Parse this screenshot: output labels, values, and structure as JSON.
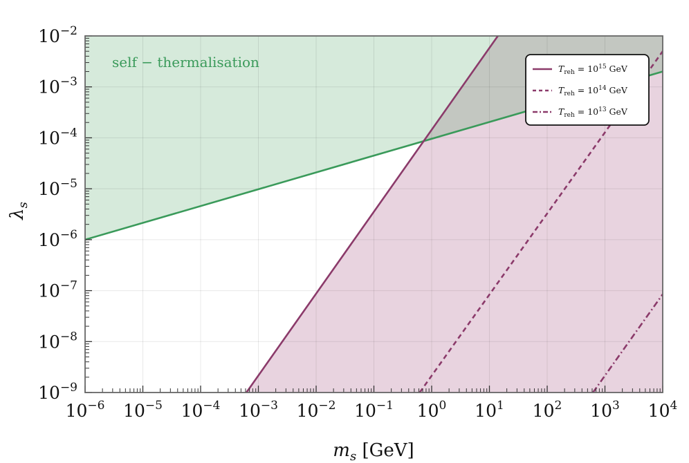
{
  "chart_data": {
    "type": "line",
    "title": "",
    "xlabel": {
      "symbol": "m",
      "subscript": "s",
      "unit": "[GeV]"
    },
    "ylabel": {
      "symbol": "λ",
      "subscript": "s"
    },
    "xscale": "log",
    "yscale": "log",
    "xlim": [
      1e-06,
      10000.0
    ],
    "ylim": [
      1e-09,
      0.01
    ],
    "x_ticks": [
      {
        "base": "10",
        "exp": "−6"
      },
      {
        "base": "10",
        "exp": "−5"
      },
      {
        "base": "10",
        "exp": "−4"
      },
      {
        "base": "10",
        "exp": "−3"
      },
      {
        "base": "10",
        "exp": "−2"
      },
      {
        "base": "10",
        "exp": "−1"
      },
      {
        "base": "10",
        "exp": "0"
      },
      {
        "base": "10",
        "exp": "1"
      },
      {
        "base": "10",
        "exp": "2"
      },
      {
        "base": "10",
        "exp": "3"
      },
      {
        "base": "10",
        "exp": "4"
      }
    ],
    "y_ticks": [
      {
        "base": "10",
        "exp": "−9"
      },
      {
        "base": "10",
        "exp": "−8"
      },
      {
        "base": "10",
        "exp": "−7"
      },
      {
        "base": "10",
        "exp": "−6"
      },
      {
        "base": "10",
        "exp": "−5"
      },
      {
        "base": "10",
        "exp": "−4"
      },
      {
        "base": "10",
        "exp": "−3"
      },
      {
        "base": "10",
        "exp": "−2"
      }
    ],
    "grid": true,
    "legend_position": "top-right",
    "annotations": [
      {
        "text": "self − thermalisation",
        "color": "#3a9a5a"
      }
    ],
    "colors": {
      "self_thermalisation_line": "#3a9a5a",
      "self_thermalisation_fill": "#d6eadb",
      "reheating_line": "#8b3a6a",
      "reheating_fill": "#e8d3df",
      "overlap_fill": "#c3c7c1"
    },
    "self_thermalisation": {
      "name": "self − thermalisation",
      "x": [
        1e-06,
        10000.0
      ],
      "y": [
        1e-06,
        0.002
      ],
      "shaded": "above"
    },
    "series": [
      {
        "name": {
          "var": "T",
          "sub": "reh",
          "base": "10",
          "exp": "15",
          "unit": "GeV"
        },
        "linestyle": "solid",
        "x": [
          0.00062,
          14
        ],
        "y": [
          1e-09,
          0.01
        ],
        "shaded": "right"
      },
      {
        "name": {
          "var": "T",
          "sub": "reh",
          "base": "10",
          "exp": "14",
          "unit": "GeV"
        },
        "linestyle": "dashed",
        "x": [
          0.62,
          10000.0
        ],
        "y": [
          1e-09,
          0.005
        ]
      },
      {
        "name": {
          "var": "T",
          "sub": "reh",
          "base": "10",
          "exp": "13",
          "unit": "GeV"
        },
        "linestyle": "dashdot",
        "x": [
          620,
          10000.0
        ],
        "y": [
          1e-09,
          8.5e-08
        ]
      }
    ]
  }
}
